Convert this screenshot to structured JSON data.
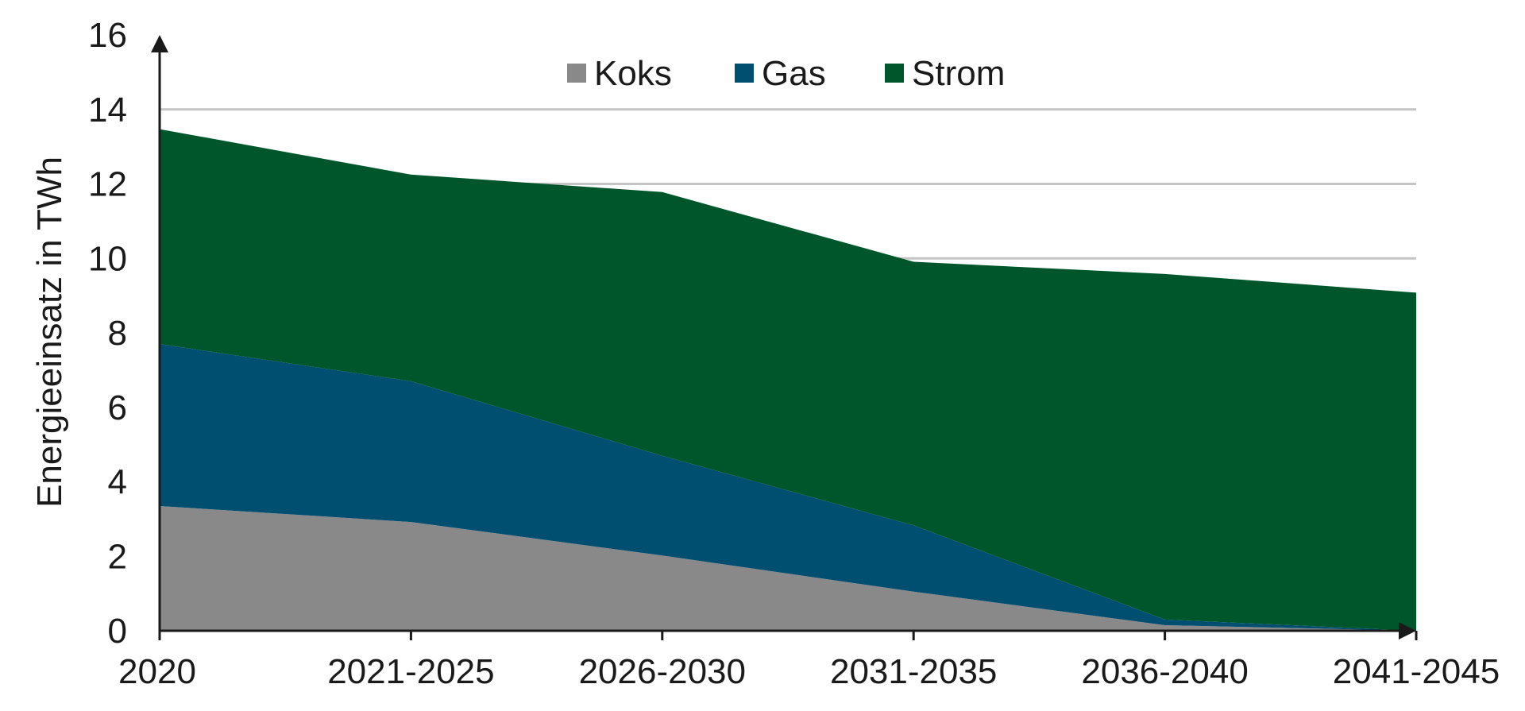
{
  "chart_data": {
    "type": "area",
    "stacked": true,
    "categories": [
      "2020",
      "2021-2025",
      "2026-2030",
      "2031-2035",
      "2036-2040",
      "2041-2045"
    ],
    "series": [
      {
        "name": "Koks",
        "color": "#898989",
        "values": [
          3.35,
          2.92,
          2.02,
          1.05,
          0.15,
          0.0
        ]
      },
      {
        "name": "Gas",
        "color": "#004f71",
        "values": [
          4.35,
          3.78,
          2.68,
          1.78,
          0.15,
          0.0
        ]
      },
      {
        "name": "Strom",
        "color": "#00562b",
        "values": [
          5.77,
          5.55,
          7.08,
          7.08,
          9.28,
          9.08
        ]
      }
    ],
    "xlabel": "",
    "ylabel": "Energieeinsatz in TWh",
    "ylim": [
      0,
      16
    ],
    "yticks": [
      0,
      2,
      4,
      6,
      8,
      10,
      12,
      14,
      16
    ],
    "grid": true,
    "legend_position": "top-center"
  }
}
